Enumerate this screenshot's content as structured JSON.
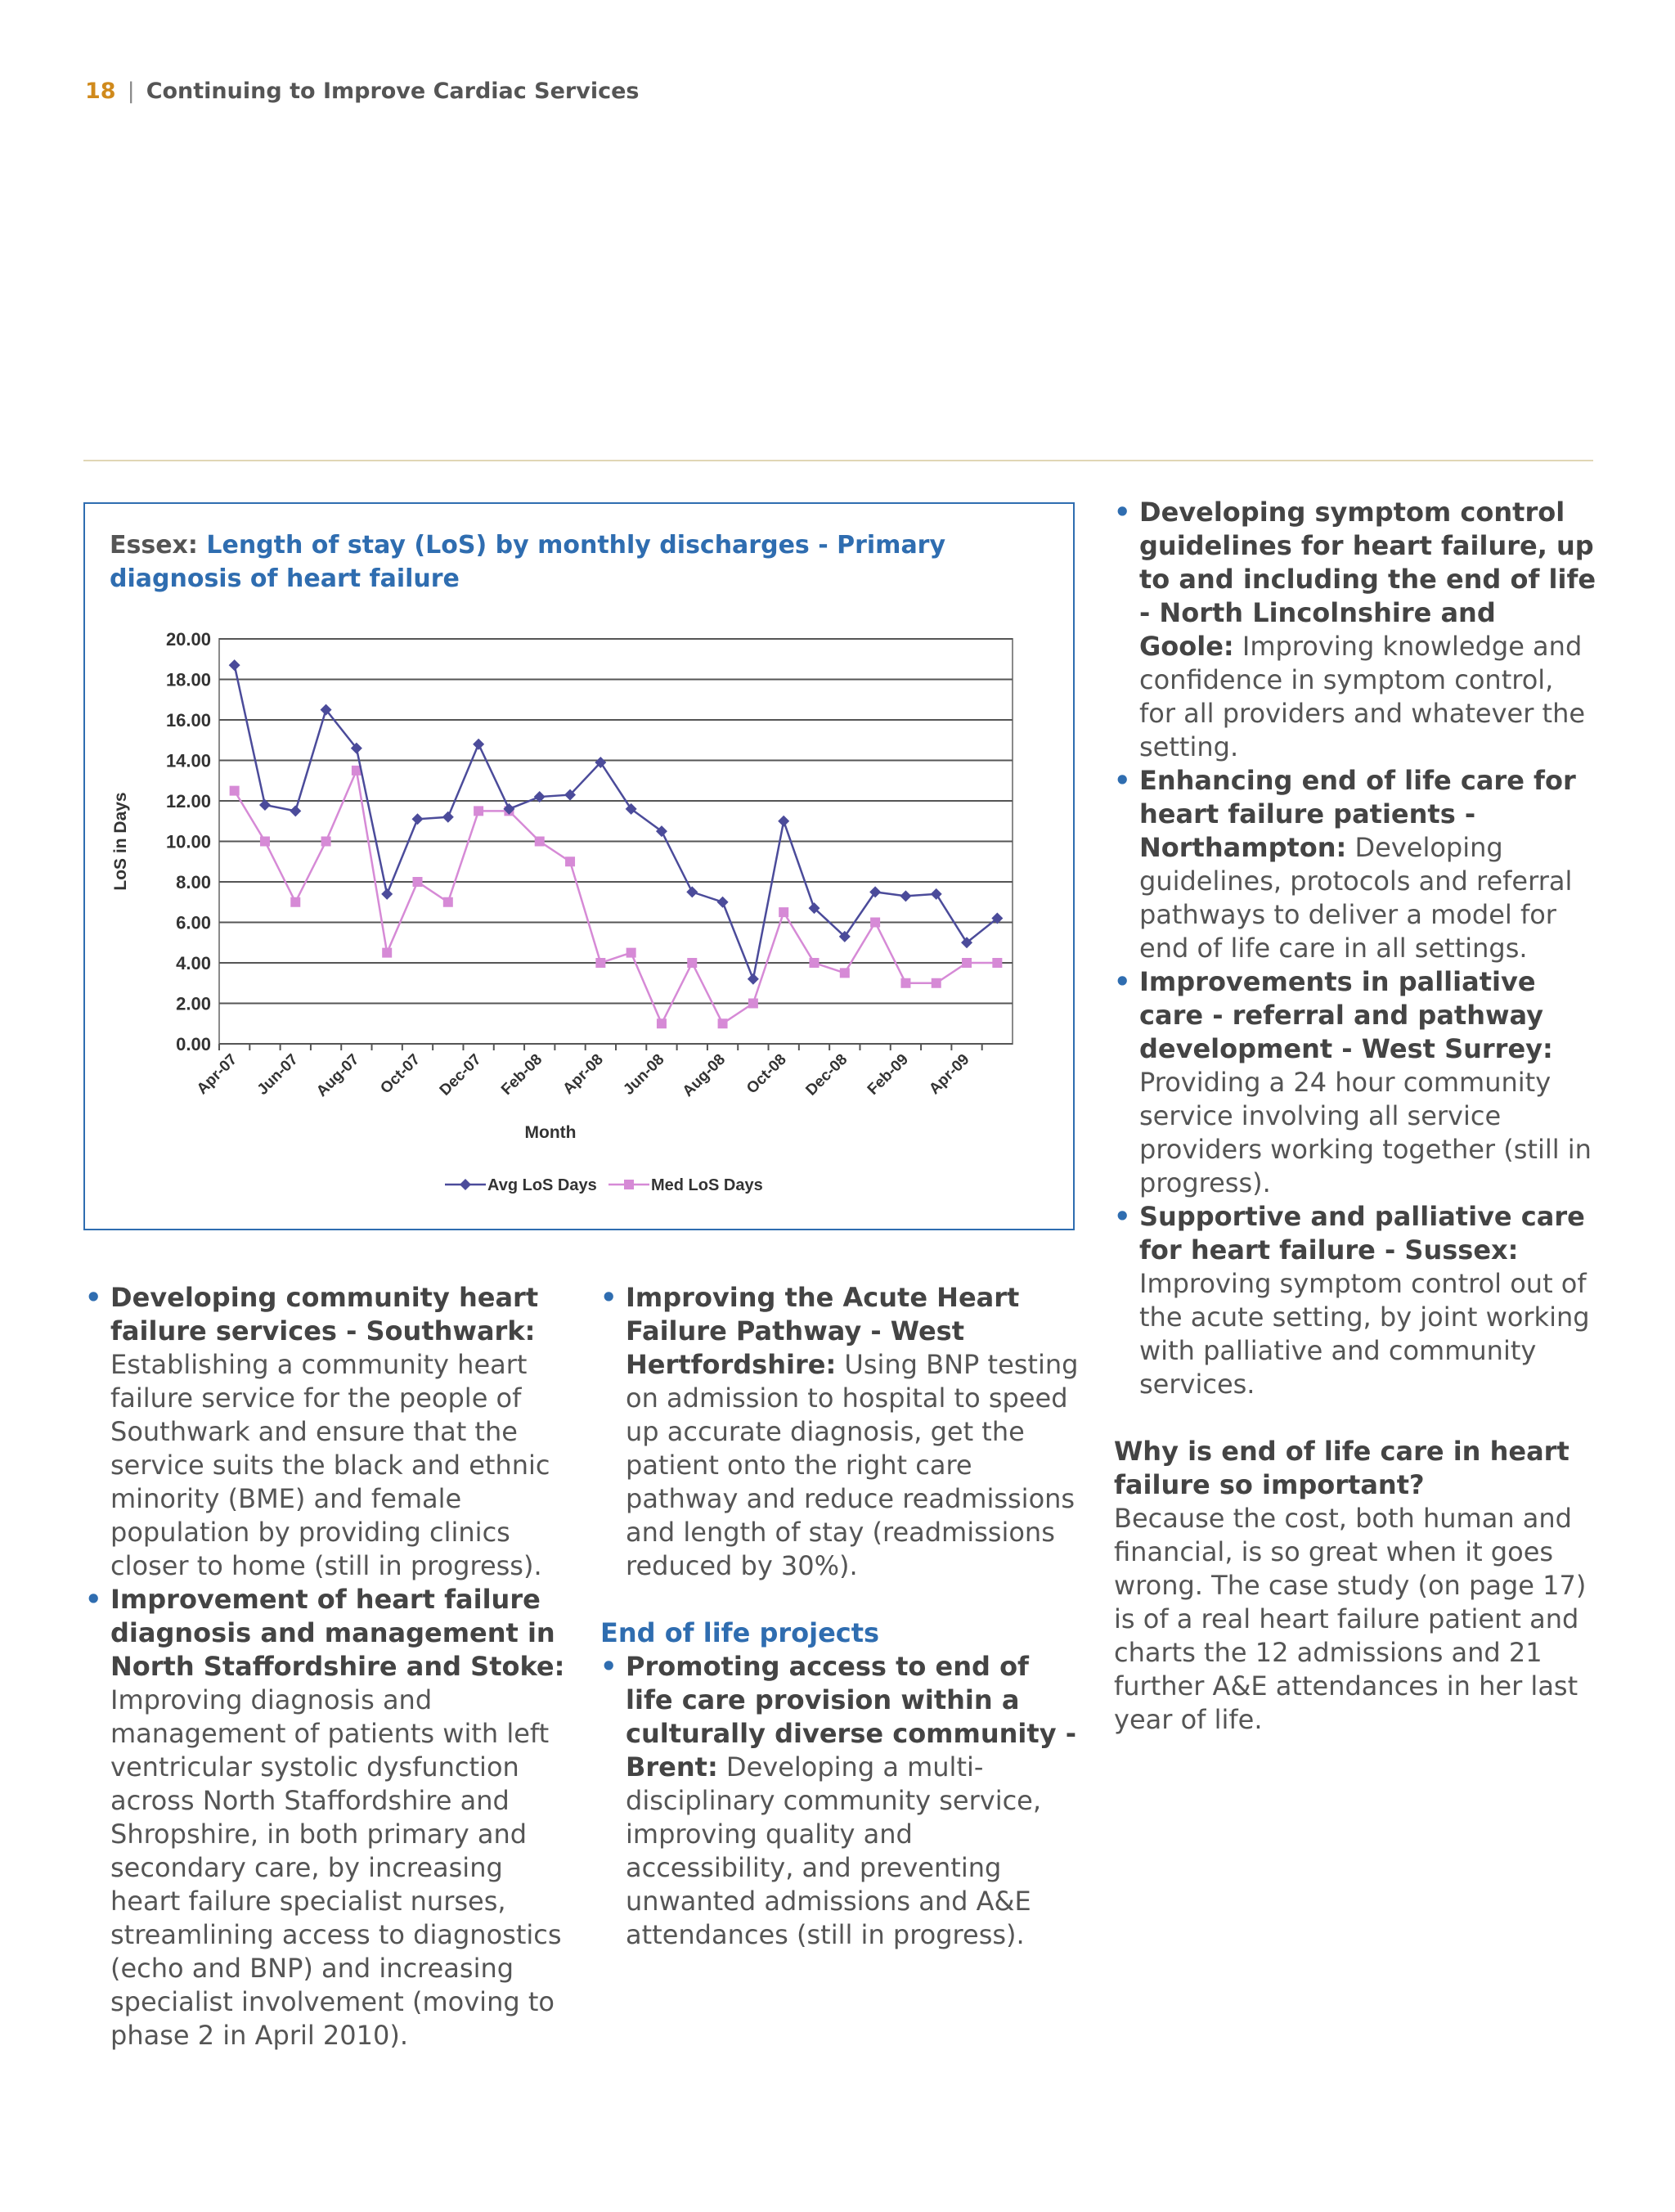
{
  "header": {
    "page_number": "18",
    "separator": "|",
    "title": "Continuing to Improve Cardiac Services"
  },
  "figure": {
    "title_lead": "Essex:",
    "title_rest": "Length of stay (LoS) by monthly discharges - Primary diagnosis of heart failure"
  },
  "chart_data": {
    "type": "line",
    "xlabel": "Month",
    "ylabel": "LoS in Days",
    "ylim": [
      0,
      20
    ],
    "yticks": [
      "0.00",
      "2.00",
      "4.00",
      "6.00",
      "8.00",
      "10.00",
      "12.00",
      "14.00",
      "16.00",
      "18.00",
      "20.00"
    ],
    "x": [
      "Apr-07",
      "May-07",
      "Jun-07",
      "Jul-07",
      "Aug-07",
      "Sep-07",
      "Oct-07",
      "Nov-07",
      "Dec-07",
      "Jan-08",
      "Feb-08",
      "Mar-08",
      "Apr-08",
      "May-08",
      "Jun-08",
      "Jul-08",
      "Aug-08",
      "Sep-08",
      "Oct-08",
      "Nov-08",
      "Dec-08",
      "Jan-09",
      "Feb-09",
      "Mar-09",
      "Apr-09",
      "May-09"
    ],
    "xtick_labels": [
      "Apr-07",
      "",
      "Jun-07",
      "",
      "Aug-07",
      "",
      "Oct-07",
      "",
      "Dec-07",
      "",
      "Feb-08",
      "",
      "Apr-08",
      "",
      "Jun-08",
      "",
      "Aug-08",
      "",
      "Oct-08",
      "",
      "Dec-08",
      "",
      "Feb-09",
      "",
      "Apr-09",
      ""
    ],
    "series": [
      {
        "name": "Avg LoS Days",
        "color": "#4b4b9a",
        "marker": "diamond",
        "values": [
          18.7,
          11.8,
          11.5,
          16.5,
          14.6,
          7.4,
          11.1,
          11.2,
          14.8,
          11.6,
          12.2,
          12.3,
          13.9,
          11.6,
          10.5,
          7.5,
          7.0,
          3.2,
          11.0,
          6.7,
          5.3,
          7.5,
          7.3,
          7.4,
          5.0,
          6.2
        ]
      },
      {
        "name": "Med LoS Days",
        "color": "#d68ad6",
        "marker": "square",
        "values": [
          12.5,
          10.0,
          7.0,
          10.0,
          13.5,
          4.5,
          8.0,
          7.0,
          11.5,
          11.5,
          10.0,
          9.0,
          4.0,
          4.5,
          1.0,
          4.0,
          1.0,
          2.0,
          6.5,
          4.0,
          3.5,
          6.0,
          3.0,
          3.0,
          4.0,
          4.0
        ]
      }
    ],
    "grid": true,
    "legend": "bottom"
  },
  "col1": [
    {
      "head": "Developing community heart failure services - Southwark:",
      "body": "Establishing a community heart failure service for the people of Southwark and  ensure that the service suits the black and ethnic minority (BME) and female population by providing clinics closer to home (still in progress)."
    },
    {
      "head": "Improvement of heart failure diagnosis and management in North Staffordshire and Stoke:",
      "body": "Improving diagnosis and management of patients with left ventricular systolic dysfunction across North Staffordshire and Shropshire, in both primary and secondary care, by increasing heart failure specialist nurses, streamlining access to diagnostics (echo and BNP) and increasing specialist involvement (moving to phase 2 in April 2010)."
    }
  ],
  "col2": {
    "items": [
      {
        "head": "Improving the Acute Heart Failure Pathway - West Hertfordshire:",
        "body": "Using BNP testing on admission to hospital to speed up accurate diagnosis, get the patient onto the right care pathway and reduce readmissions and length of stay (readmissions reduced by 30%)."
      }
    ],
    "subheading": "End of life projects",
    "items2": [
      {
        "head": "Promoting access to end of life care provision within a culturally diverse community - Brent:",
        "body": "Developing a multi-disciplinary community service, improving quality and accessibility, and preventing unwanted admissions and A&E attendances (still in progress)."
      }
    ]
  },
  "col3": {
    "items": [
      {
        "head": "Developing symptom control guidelines for heart failure, up to and including the end of life - North Lincolnshire and Goole:",
        "body": "Improving knowledge and confidence in symptom control, for all providers and whatever the setting."
      },
      {
        "head": "Enhancing end of life care for heart failure patients - Northampton:",
        "body": "Developing guidelines, protocols and referral pathways to deliver a model for end of life care in all settings."
      },
      {
        "head": "Improvements in palliative care - referral and pathway development - West Surrey:",
        "body": "Providing a 24 hour community service involving all service providers working together (still in progress)."
      },
      {
        "head": "Supportive and palliative care for heart failure - Sussex:",
        "body": "Improving symptom control out of the acute setting, by joint working with palliative and community services."
      }
    ],
    "question": "Why is end of life care in heart failure so important?",
    "answer": "Because the cost, both human and financial, is so great when it goes wrong. The case study (on page 17) is of a real heart failure patient and charts the 12 admissions and 21 further A&E attendances in her last year of life."
  }
}
